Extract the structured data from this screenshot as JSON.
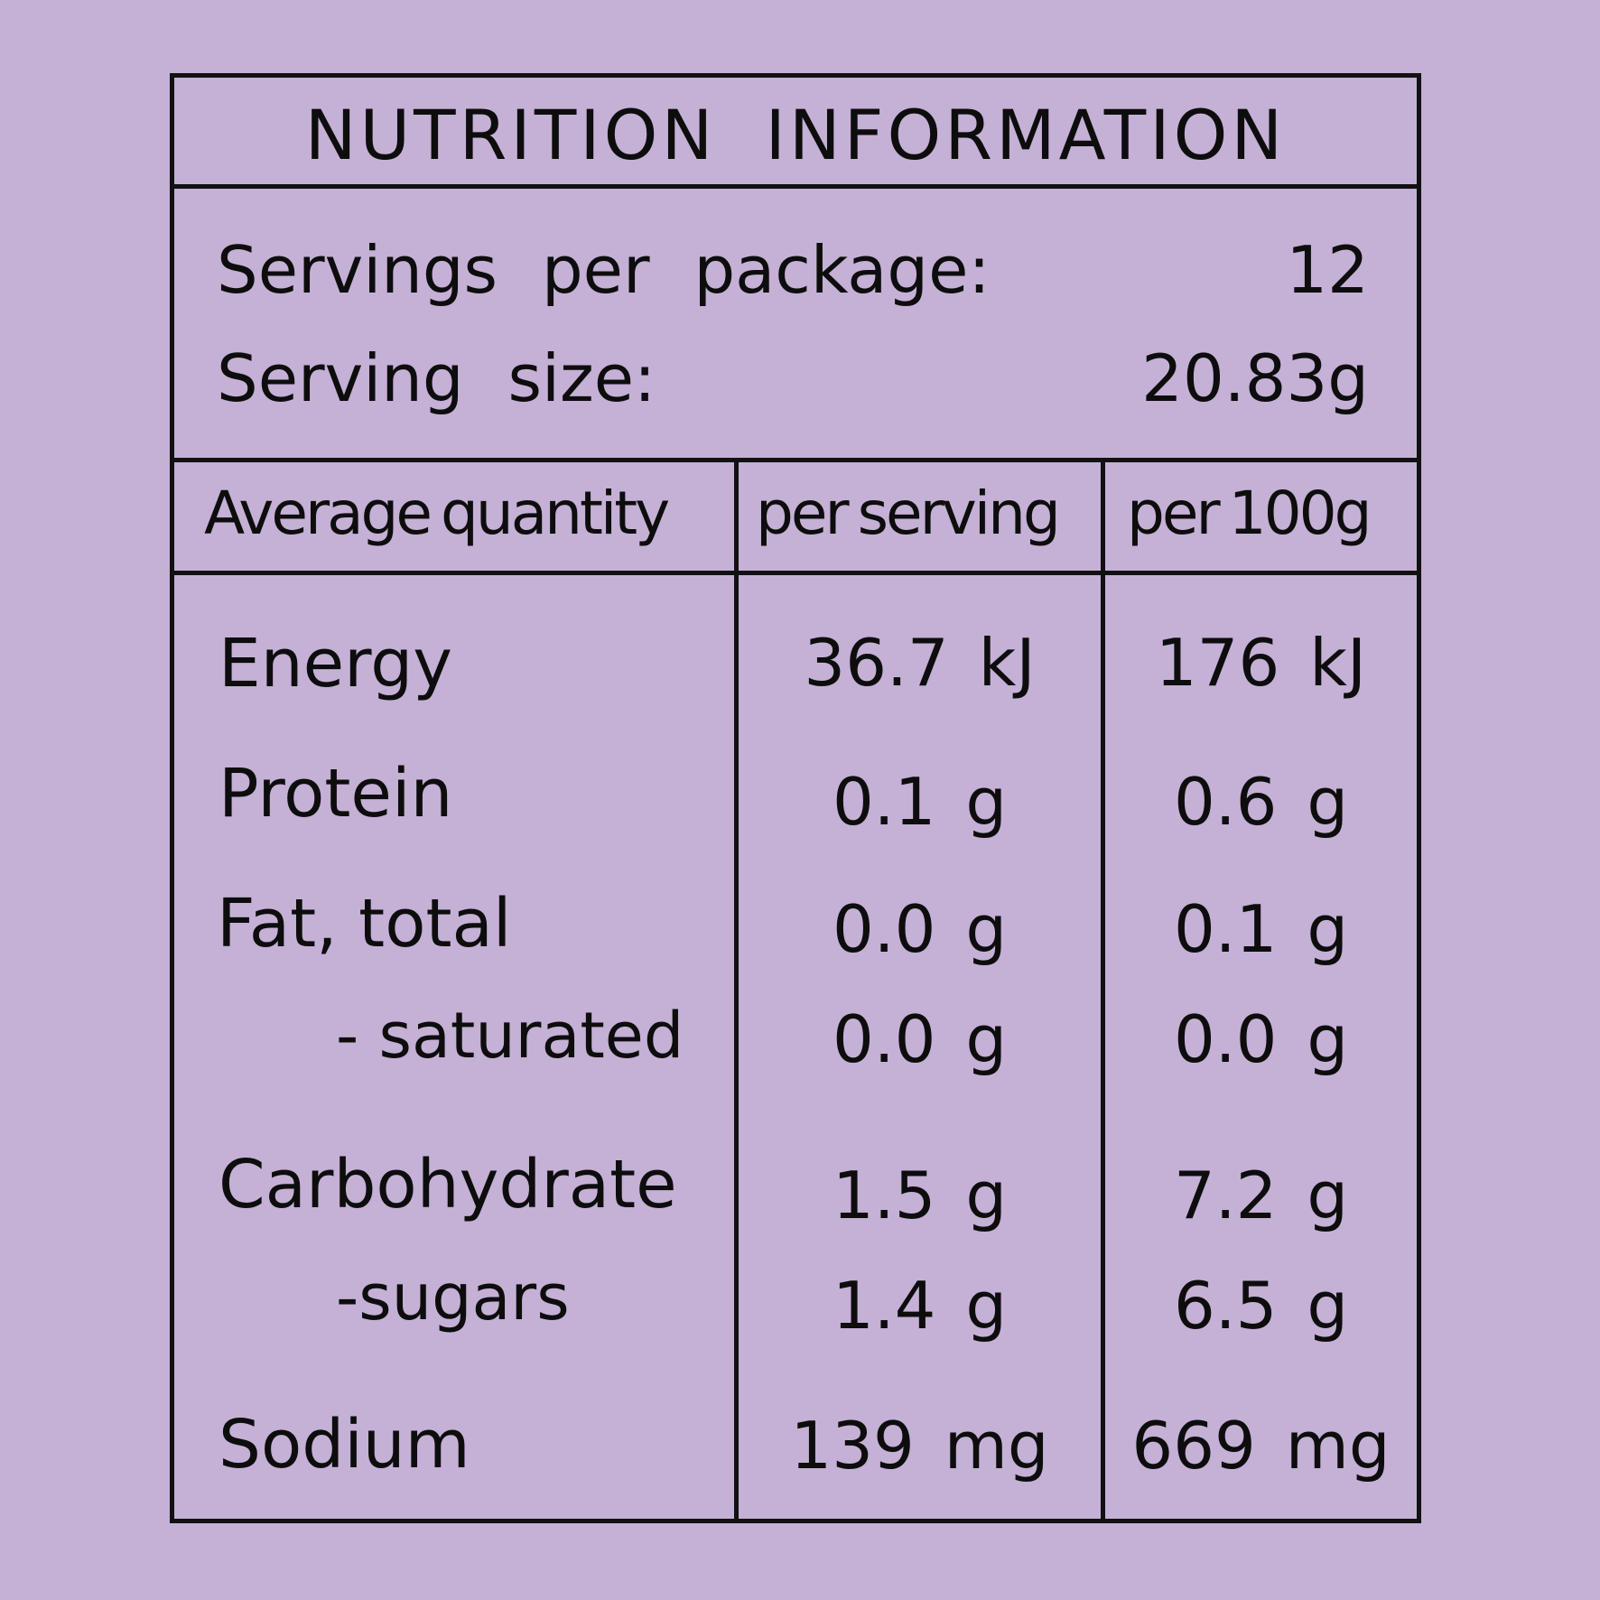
{
  "title": "NUTRITION INFORMATION",
  "servings": {
    "per_package_label": "Servings per package:",
    "per_package_value": "12",
    "size_label": "Serving size:",
    "size_value": "20.83g"
  },
  "columns": {
    "quantity": "Average quantity",
    "per_serving": "per serving",
    "per_100g": "per 100g"
  },
  "rows": [
    {
      "label": "Energy",
      "per_serving": "36.7 kJ",
      "per_100g": "176 kJ"
    },
    {
      "label": "Protein",
      "per_serving": "0.1 g",
      "per_100g": "0.6 g"
    },
    {
      "label": "Fat, total",
      "per_serving": "0.0 g",
      "per_100g": "0.1 g"
    },
    {
      "label": "- saturated",
      "per_serving": "0.0 g",
      "per_100g": "0.0 g"
    },
    {
      "label": "Carbohydrate",
      "per_serving": "1.5 g",
      "per_100g": "7.2 g"
    },
    {
      "label": "-sugars",
      "per_serving": "1.4 g",
      "per_100g": "6.5 g"
    },
    {
      "label": "Sodium",
      "per_serving": "139 mg",
      "per_100g": "669 mg"
    }
  ],
  "colors": {
    "background": "#c5b0d6",
    "lines": "#111111",
    "text": "#0d0d0d"
  }
}
